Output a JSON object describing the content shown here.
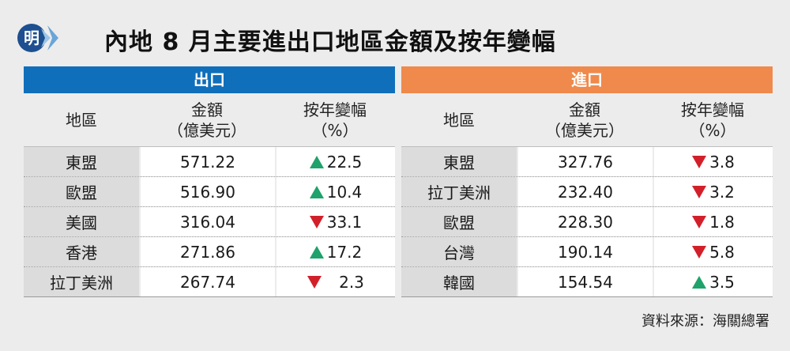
{
  "title": "內地 8 月主要進出口地區金額及按年變幅",
  "logo_text": "明",
  "colors": {
    "export": "#0f6fba",
    "import": "#ef8a4c",
    "up": "#1fa26b",
    "down": "#d2202a"
  },
  "columns": {
    "region": "地區",
    "amount_line1": "金額",
    "amount_line2": "（億美元）",
    "change_line1": "按年變幅",
    "change_line2": "（%）"
  },
  "export": {
    "header": "出口",
    "rows": [
      {
        "region": "東盟",
        "amount": "571.22",
        "dir": "up",
        "change": "22.5"
      },
      {
        "region": "歐盟",
        "amount": "516.90",
        "dir": "up",
        "change": "10.4"
      },
      {
        "region": "美國",
        "amount": "316.04",
        "dir": "down",
        "change": "33.1"
      },
      {
        "region": "香港",
        "amount": "271.86",
        "dir": "up",
        "change": "17.2"
      },
      {
        "region": "拉丁美洲",
        "amount": "267.74",
        "dir": "down",
        "change": "2.3"
      }
    ]
  },
  "import": {
    "header": "進口",
    "rows": [
      {
        "region": "東盟",
        "amount": "327.76",
        "dir": "down",
        "change": "3.8"
      },
      {
        "region": "拉丁美洲",
        "amount": "232.40",
        "dir": "down",
        "change": "3.2"
      },
      {
        "region": "歐盟",
        "amount": "228.30",
        "dir": "down",
        "change": "1.8"
      },
      {
        "region": "台灣",
        "amount": "190.14",
        "dir": "down",
        "change": "5.8"
      },
      {
        "region": "韓國",
        "amount": "154.54",
        "dir": "up",
        "change": "3.5"
      }
    ]
  },
  "source": "資料來源：海關總署"
}
